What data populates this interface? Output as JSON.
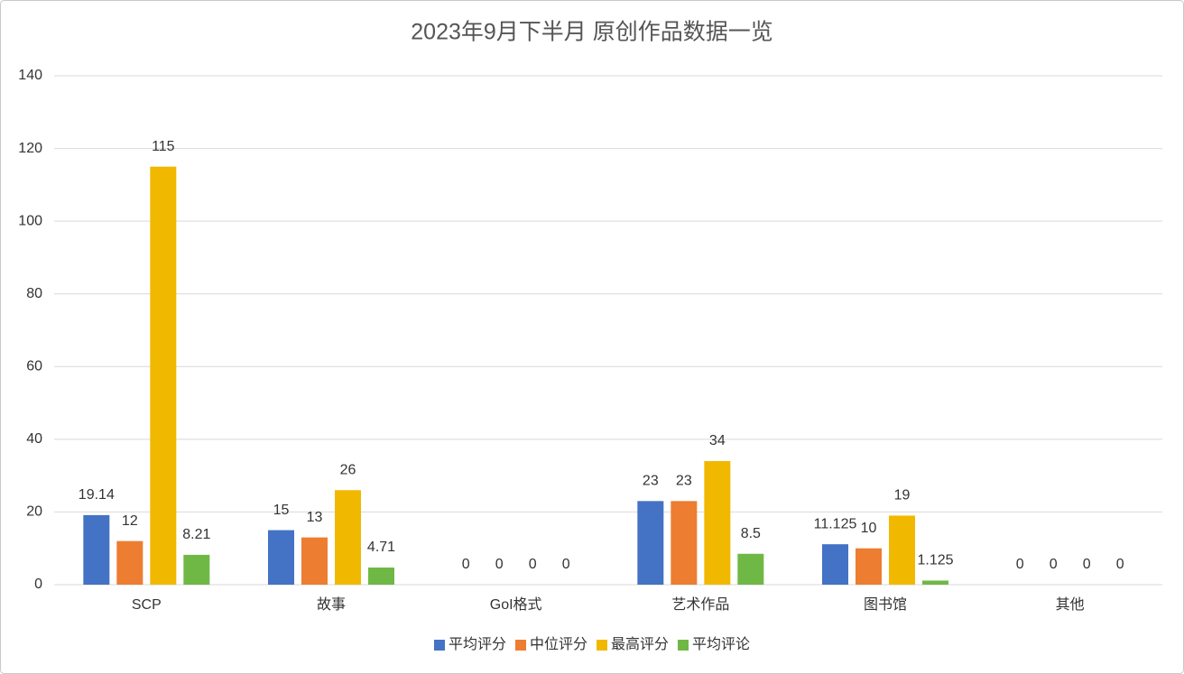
{
  "chart_data": {
    "type": "bar",
    "title": "2023年9月下半月 原创作品数据一览",
    "categories": [
      "SCP",
      "故事",
      "GoI格式",
      "艺术作品",
      "图书馆",
      "其他"
    ],
    "series": [
      {
        "name": "平均评分",
        "color": "#4472c4",
        "values": [
          19.14,
          15,
          0,
          23,
          11.125,
          0
        ]
      },
      {
        "name": "中位评分",
        "color": "#ed7d31",
        "values": [
          12,
          13,
          0,
          23,
          10,
          0
        ]
      },
      {
        "name": "最高评分",
        "color": "#f1b800",
        "values": [
          115,
          26,
          0,
          34,
          19,
          0
        ]
      },
      {
        "name": "平均评论",
        "color": "#70b845",
        "values": [
          8.21,
          4.71,
          0,
          8.5,
          1.125,
          0
        ]
      }
    ],
    "ylim": [
      0,
      140
    ],
    "yticks": [
      0,
      20,
      40,
      60,
      80,
      100,
      120,
      140
    ],
    "grid": true,
    "legend": "bottom",
    "data_labels": true
  }
}
